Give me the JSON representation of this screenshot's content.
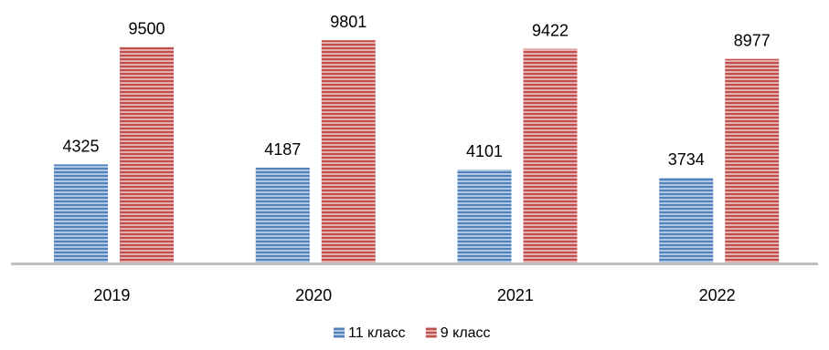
{
  "chart_data": {
    "type": "bar",
    "categories": [
      "2019",
      "2020",
      "2021",
      "2022"
    ],
    "series": [
      {
        "name": "11 класс",
        "values": [
          4325,
          4187,
          4101,
          3734
        ],
        "color": "#4f81bd"
      },
      {
        "name": "9 класс",
        "values": [
          9500,
          9801,
          9422,
          8977
        ],
        "color": "#c0504d"
      }
    ],
    "ylim": [
      0,
      10500
    ],
    "grid": false,
    "legend_position": "bottom",
    "bar_pattern": "horizontal-stripes",
    "axis_color": "#bfbfbf"
  }
}
